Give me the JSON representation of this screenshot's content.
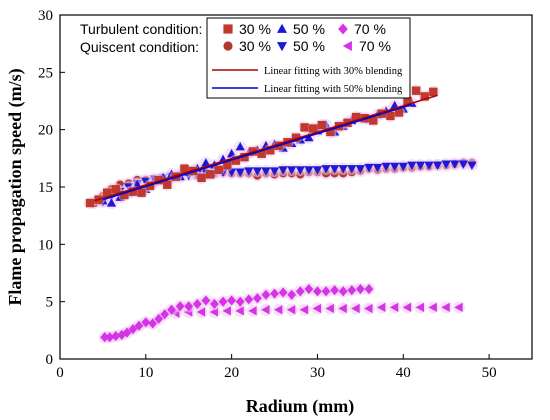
{
  "chart_data": {
    "type": "scatter",
    "xlabel": "Radium (mm)",
    "ylabel": "Flame propagation speed (m/s)",
    "xlim": [
      0,
      55
    ],
    "ylim": [
      0,
      30
    ],
    "xticks": [
      0,
      10,
      20,
      30,
      40,
      50
    ],
    "yticks": [
      0,
      5,
      10,
      15,
      20,
      25,
      30
    ],
    "grid": false,
    "legend_position": "top-right",
    "legend": {
      "turbulent_title": "Turbulent condition:",
      "quiescent_title": "Quiscent condition:",
      "fit_30_label": "Linear fitting  with 30% blending",
      "fit_50_label": "Linear fitting  with 50% blending"
    },
    "series": [
      {
        "name": "30 %",
        "condition": "Turbulent",
        "marker": "square",
        "color": "#c0392b",
        "x": [
          3.5,
          4.5,
          5.5,
          6.5,
          7.5,
          8.5,
          9.5,
          10.5,
          11.5,
          12.5,
          13.5,
          14.5,
          15.5,
          16.5,
          17.5,
          18.5,
          19.5,
          20.5,
          21.5,
          22.5,
          23.5,
          24.5,
          25.5,
          26.5,
          27.5,
          28.5,
          29.5,
          30.5,
          31.5,
          32.5,
          33.5,
          34.5,
          35.5,
          36.5,
          37.5,
          38.5,
          39.5,
          40.5,
          41.5,
          42.5,
          43.5
        ],
        "y": [
          13.6,
          13.9,
          14.5,
          14.8,
          14.3,
          14.6,
          14.5,
          15.1,
          15.6,
          15.2,
          15.9,
          16.6,
          16.4,
          15.8,
          16.1,
          16.5,
          16.9,
          17.3,
          17.6,
          18.1,
          17.9,
          18.2,
          18.6,
          18.9,
          19.3,
          20.2,
          20.1,
          20.4,
          19.8,
          20.3,
          20.6,
          21.1,
          21.0,
          20.8,
          21.4,
          21.2,
          21.5,
          22.5,
          23.4,
          22.9,
          23.3
        ]
      },
      {
        "name": "50 %",
        "condition": "Turbulent",
        "marker": "triangle-up",
        "color": "#1a1ad6",
        "x": [
          5,
          6,
          7,
          8,
          9,
          10,
          11,
          12,
          13,
          14,
          15,
          16,
          17,
          18,
          19,
          20,
          21,
          22,
          23,
          24,
          25,
          26,
          27,
          28,
          29,
          30,
          31,
          32,
          33,
          34,
          35,
          36,
          37,
          38,
          39,
          40,
          41
        ],
        "y": [
          13.8,
          13.6,
          14.1,
          14.5,
          15.2,
          14.8,
          15.6,
          15.8,
          16.1,
          15.9,
          16.3,
          16.6,
          17.1,
          16.9,
          17.4,
          17.9,
          18.5,
          18.0,
          18.2,
          18.6,
          18.7,
          18.4,
          18.8,
          19.1,
          19.3,
          19.9,
          20.4,
          19.8,
          20.3,
          20.8,
          21.0,
          20.9,
          21.3,
          21.6,
          22.1,
          21.8,
          22.3
        ]
      },
      {
        "name": "70 %",
        "condition": "Turbulent",
        "marker": "diamond",
        "color": "#d633e6",
        "x": [
          5.2,
          5.8,
          6.5,
          7.2,
          7.8,
          8.5,
          9.2,
          10,
          10.8,
          11.5,
          12.2,
          13,
          14,
          15,
          16,
          17,
          18,
          19,
          20,
          21,
          22,
          23,
          24,
          25,
          26,
          27,
          28,
          29,
          30,
          31,
          32,
          33,
          34,
          35,
          36
        ],
        "y": [
          1.9,
          1.9,
          2.0,
          2.1,
          2.3,
          2.6,
          2.9,
          3.2,
          3.1,
          3.5,
          3.9,
          4.3,
          4.6,
          4.6,
          4.8,
          5.1,
          4.8,
          5.0,
          5.1,
          5.0,
          5.2,
          5.3,
          5.6,
          5.7,
          5.8,
          5.6,
          5.9,
          6.1,
          5.9,
          5.9,
          6.0,
          5.9,
          6.0,
          6.1,
          6.1
        ]
      },
      {
        "name": "30 %",
        "condition": "Quiescent",
        "marker": "circle",
        "color": "#b03a2e",
        "x": [
          4,
          5,
          6,
          7,
          8,
          9,
          10,
          11,
          12,
          13,
          14,
          15,
          16,
          17,
          18,
          19,
          20,
          21,
          22,
          23,
          24,
          25,
          26,
          27,
          28,
          29,
          30,
          31,
          32,
          33,
          34,
          35,
          36,
          37,
          38,
          39,
          40,
          41,
          42,
          43,
          44,
          45,
          46,
          47,
          48
        ],
        "y": [
          13.6,
          14.2,
          14.8,
          15.2,
          15.3,
          15.6,
          15.6,
          15.4,
          15.6,
          15.8,
          16.0,
          16.2,
          16.0,
          16.3,
          16.2,
          16.3,
          16.2,
          16.2,
          16.2,
          16.0,
          16.2,
          16.1,
          16.2,
          16.2,
          16.1,
          16.3,
          16.3,
          16.2,
          16.2,
          16.2,
          16.3,
          16.4,
          16.6,
          16.5,
          16.6,
          16.6,
          16.7,
          16.7,
          16.8,
          16.8,
          16.9,
          16.9,
          17.0,
          17.1,
          17.1
        ]
      },
      {
        "name": "50 %",
        "condition": "Quiescent",
        "marker": "triangle-down",
        "color": "#1a1ad6",
        "x": [
          5,
          6,
          7,
          8,
          9,
          10,
          11,
          12,
          13,
          14,
          15,
          16,
          17,
          18,
          19,
          20,
          21,
          22,
          23,
          24,
          25,
          26,
          27,
          28,
          29,
          30,
          31,
          32,
          33,
          34,
          35,
          36,
          37,
          38,
          39,
          40,
          41,
          42,
          43,
          44,
          45,
          46,
          47,
          48
        ],
        "y": [
          13.7,
          14.2,
          14.6,
          15.0,
          15.3,
          15.5,
          15.7,
          15.8,
          15.9,
          16.0,
          16.0,
          16.1,
          16.2,
          16.2,
          16.3,
          16.3,
          16.3,
          16.4,
          16.4,
          16.4,
          16.4,
          16.5,
          16.5,
          16.5,
          16.5,
          16.5,
          16.6,
          16.6,
          16.6,
          16.6,
          16.6,
          16.7,
          16.7,
          16.8,
          16.8,
          16.8,
          16.9,
          16.9,
          16.9,
          16.9,
          17.0,
          17.0,
          17.0,
          16.9
        ]
      },
      {
        "name": "70 %",
        "condition": "Quiescent",
        "marker": "triangle-left",
        "color": "#d633e6",
        "x": [
          13.5,
          15,
          16.5,
          18,
          19.5,
          21,
          22.5,
          24,
          25.5,
          27,
          28.5,
          30,
          31.5,
          33,
          34.5,
          36,
          37.5,
          39,
          40.5,
          42,
          43.5,
          45,
          46.5
        ],
        "y": [
          4.0,
          4.1,
          4.1,
          4.1,
          4.2,
          4.2,
          4.2,
          4.3,
          4.3,
          4.3,
          4.3,
          4.4,
          4.4,
          4.4,
          4.4,
          4.4,
          4.5,
          4.5,
          4.5,
          4.5,
          4.5,
          4.5,
          4.5
        ]
      }
    ],
    "fit_lines": [
      {
        "name": "Linear fitting  with 30% blending",
        "color": "#b00000",
        "x": [
          4,
          44
        ],
        "y": [
          13.8,
          23.0
        ]
      },
      {
        "name": "Linear fitting  with 50% blending",
        "color": "#0000cc",
        "x": [
          5,
          41
        ],
        "y": [
          13.9,
          22.2
        ]
      }
    ]
  }
}
